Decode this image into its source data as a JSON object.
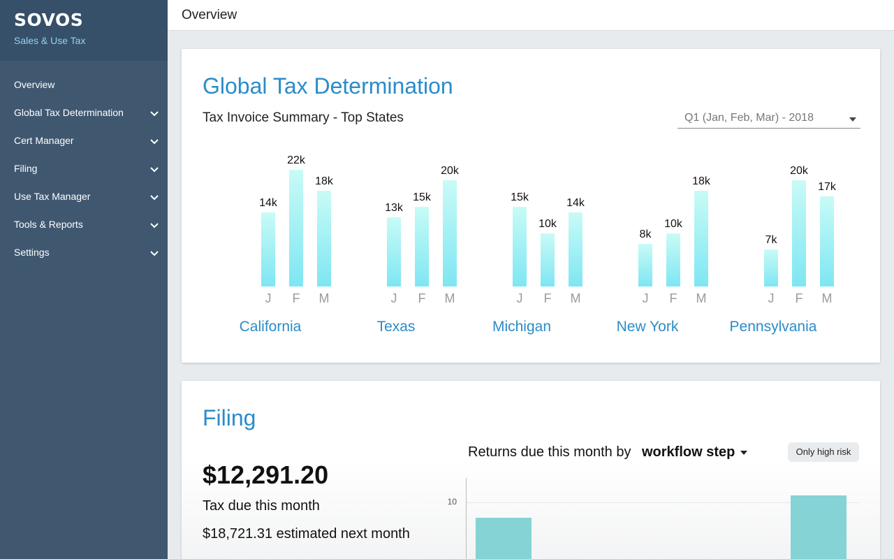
{
  "sidebar": {
    "logo": "SOVOS",
    "product": "Sales & Use Tax",
    "items": [
      {
        "label": "Overview",
        "has_chevron": false
      },
      {
        "label": "Global Tax Determination",
        "has_chevron": true
      },
      {
        "label": "Cert Manager",
        "has_chevron": true
      },
      {
        "label": "Filing",
        "has_chevron": true
      },
      {
        "label": "Use Tax Manager",
        "has_chevron": true
      },
      {
        "label": "Tools & Reports",
        "has_chevron": true
      },
      {
        "label": "Settings",
        "has_chevron": true
      }
    ]
  },
  "topbar": {
    "title": "Overview"
  },
  "gtd": {
    "title": "Global Tax Determination",
    "subtitle": "Tax Invoice Summary - Top States",
    "period_select": "Q1 (Jan, Feb, Mar) - 2018",
    "months": [
      "J",
      "F",
      "M"
    ]
  },
  "filing": {
    "title": "Filing",
    "amount": "$12,291.20",
    "tax_due_label": "Tax due this month",
    "estimated_next": "$18,721.31 estimated next month",
    "returns_label": "Returns due this month by",
    "returns_select": "workflow step",
    "high_risk_button": "Only high risk",
    "axis_tick": "10"
  },
  "colors": {
    "accent": "#2a8cc9",
    "sidebar": "#3f5870",
    "bar_top": "#c8fbf6",
    "bar_bottom": "#7ee6f3",
    "filing_bar": "#86d3d6"
  },
  "chart_data": [
    {
      "type": "bar",
      "title": "Tax Invoice Summary - Top States",
      "categories": [
        "J",
        "F",
        "M"
      ],
      "groups": [
        {
          "name": "California",
          "values": [
            14,
            22,
            18
          ],
          "labels": [
            "14k",
            "22k",
            "18k"
          ]
        },
        {
          "name": "Texas",
          "values": [
            13,
            15,
            20
          ],
          "labels": [
            "13k",
            "15k",
            "20k"
          ]
        },
        {
          "name": "Michigan",
          "values": [
            15,
            10,
            14
          ],
          "labels": [
            "15k",
            "10k",
            "14k"
          ]
        },
        {
          "name": "New York",
          "values": [
            8,
            10,
            18
          ],
          "labels": [
            "8k",
            "10k",
            "18k"
          ]
        },
        {
          "name": "Pennsylvania",
          "values": [
            7,
            20,
            17
          ],
          "labels": [
            "7k",
            "20k",
            "17k"
          ]
        }
      ],
      "ylim": [
        0,
        22
      ]
    },
    {
      "type": "bar",
      "title": "Returns due this month by workflow step",
      "yticks": [
        10
      ],
      "values": [
        8,
        11
      ],
      "ylim": [
        0,
        14
      ]
    }
  ]
}
